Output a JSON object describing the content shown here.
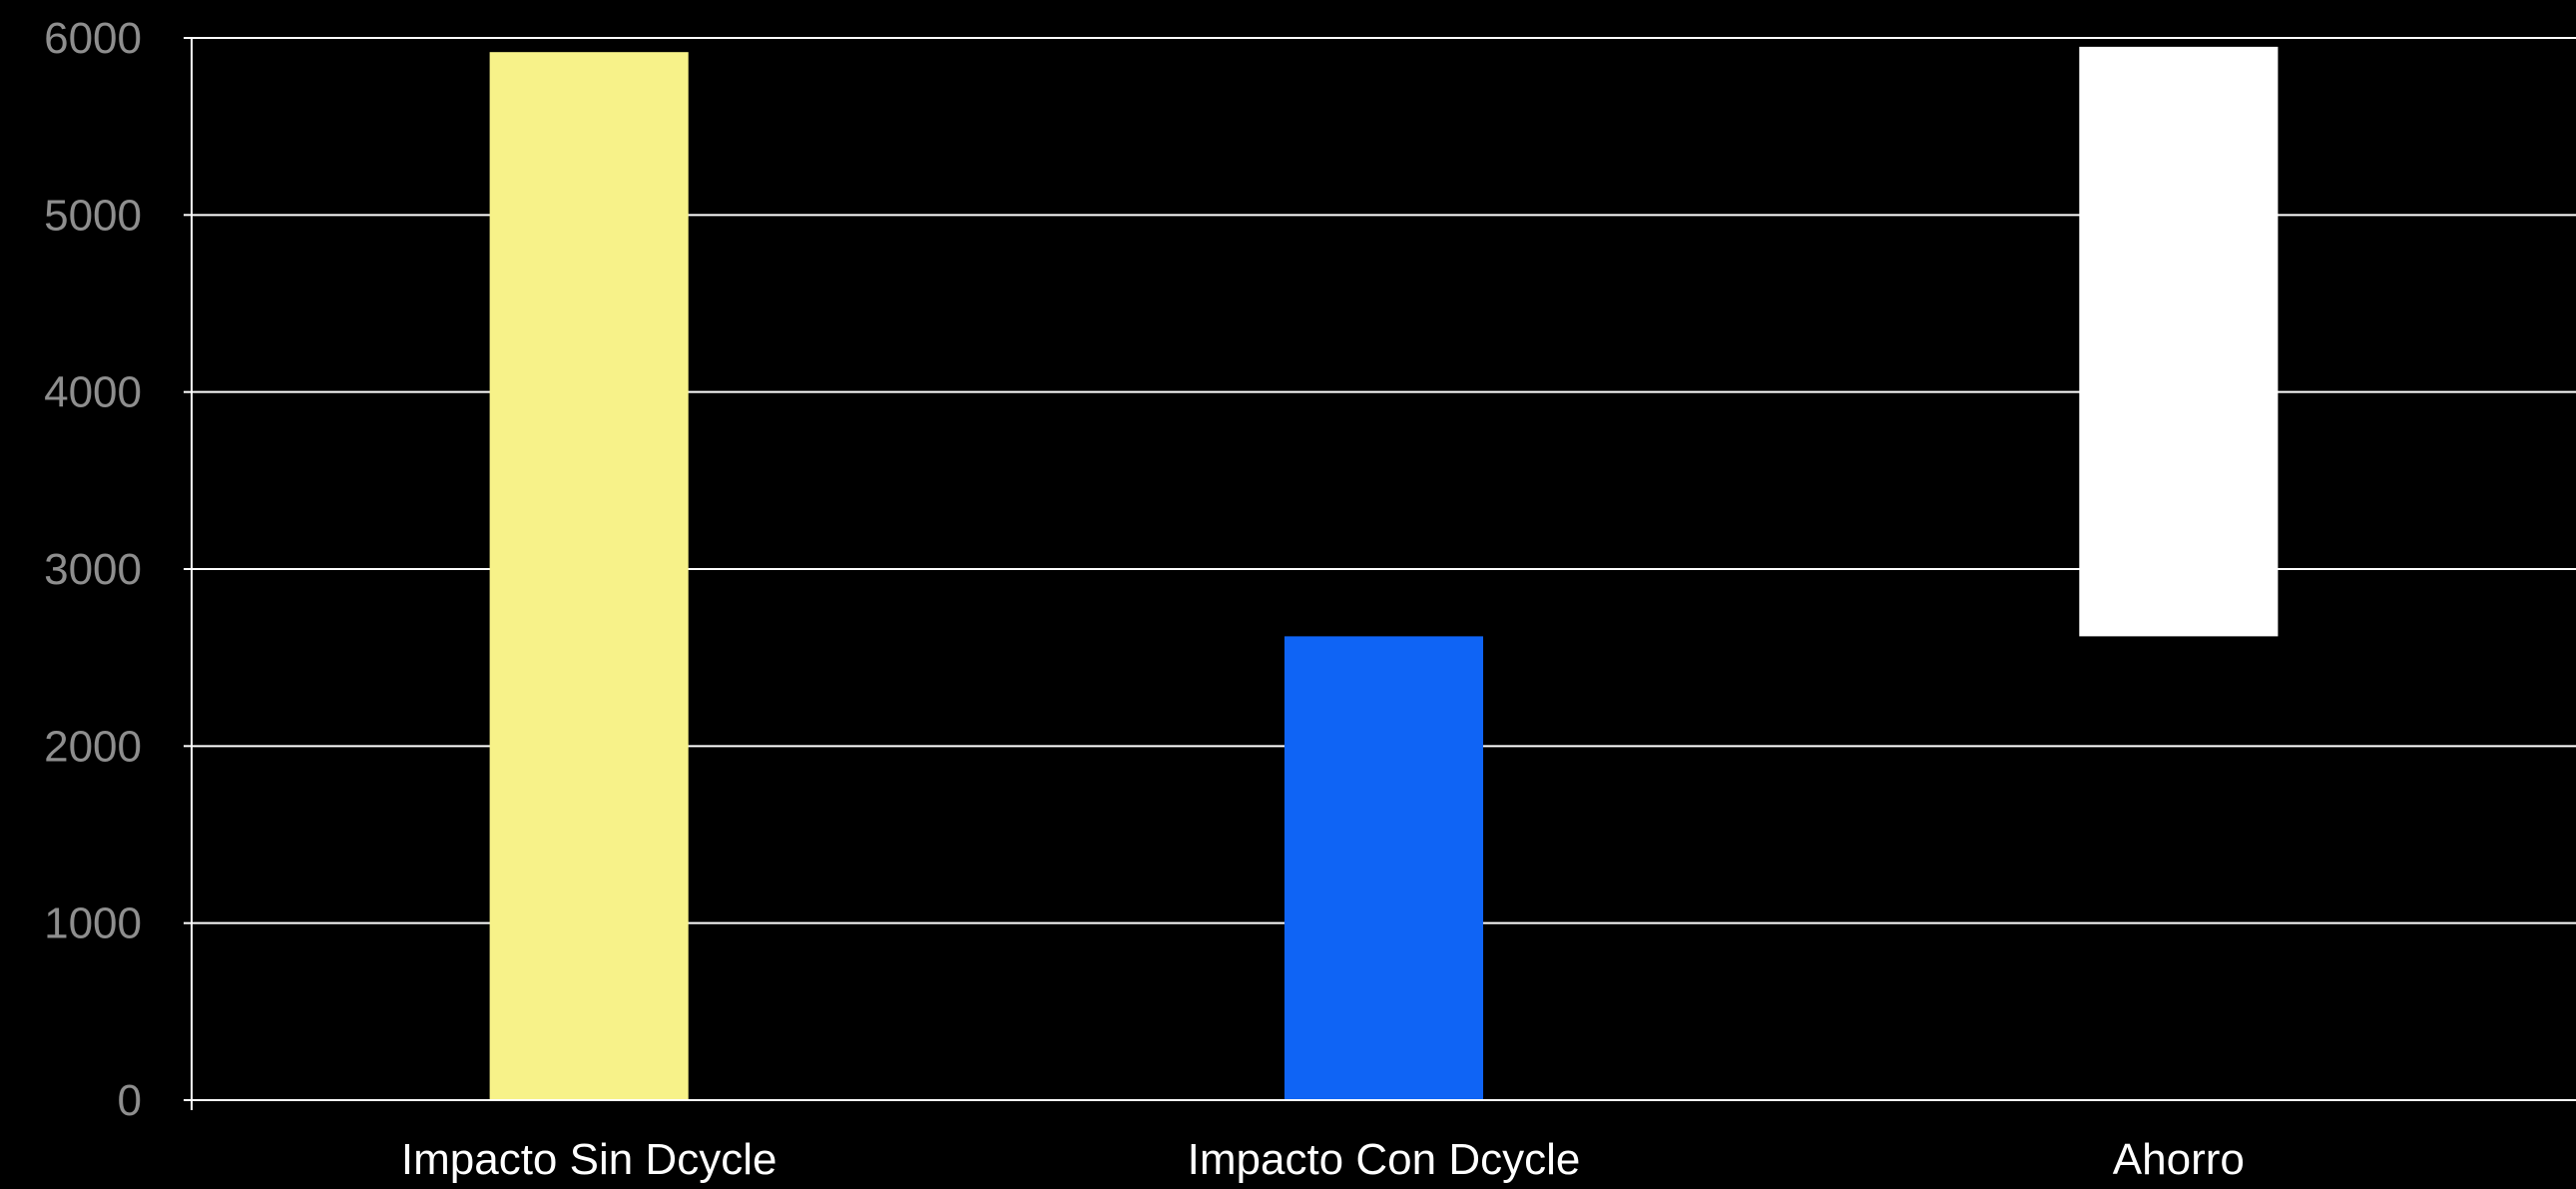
{
  "chart_data": {
    "type": "bar",
    "categories": [
      "Impacto Sin Dcycle",
      "Impacto Con Dcycle",
      "Ahorro"
    ],
    "bars": [
      {
        "category": "Impacto Sin Dcycle",
        "start": 0,
        "end": 5920,
        "color": "#f7f289"
      },
      {
        "category": "Impacto Con Dcycle",
        "start": 0,
        "end": 2620,
        "color": "#0f64f5"
      },
      {
        "category": "Ahorro",
        "start": 2620,
        "end": 5950,
        "color": "#ffffff"
      }
    ],
    "y_ticks": [
      0,
      1000,
      2000,
      3000,
      4000,
      5000,
      6000
    ],
    "ylim": [
      0,
      6000
    ],
    "grid": true,
    "legend": "none",
    "title": "",
    "xlabel": "",
    "ylabel": ""
  }
}
